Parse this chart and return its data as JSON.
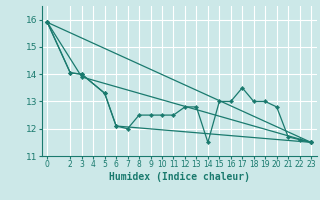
{
  "title": "",
  "xlabel": "Humidex (Indice chaleur)",
  "ylabel": "",
  "background_color": "#cce8e8",
  "grid_color": "#ffffff",
  "line_color": "#1a7a6e",
  "xlim": [
    -0.5,
    23.5
  ],
  "ylim": [
    11,
    16.5
  ],
  "yticks": [
    11,
    12,
    13,
    14,
    15,
    16
  ],
  "xticks": [
    0,
    2,
    3,
    4,
    5,
    6,
    7,
    8,
    9,
    10,
    11,
    12,
    13,
    14,
    15,
    16,
    17,
    18,
    19,
    20,
    21,
    22,
    23
  ],
  "series": [
    {
      "x": [
        0,
        2,
        3,
        5,
        6,
        7,
        8,
        9,
        10,
        11,
        12,
        13,
        14,
        15,
        16,
        17,
        18,
        19,
        20,
        21,
        22,
        23
      ],
      "y": [
        15.9,
        14.05,
        14.0,
        13.3,
        12.1,
        12.0,
        12.5,
        12.5,
        12.5,
        12.5,
        12.8,
        12.8,
        11.5,
        13.0,
        13.0,
        13.5,
        13.0,
        13.0,
        12.8,
        11.7,
        11.6,
        11.5
      ]
    },
    {
      "x": [
        0,
        2,
        3,
        5,
        6,
        23
      ],
      "y": [
        15.9,
        14.05,
        14.0,
        13.3,
        12.1,
        11.5
      ]
    },
    {
      "x": [
        0,
        3,
        23
      ],
      "y": [
        15.9,
        13.9,
        11.5
      ]
    },
    {
      "x": [
        0,
        23
      ],
      "y": [
        15.9,
        11.5
      ]
    }
  ]
}
